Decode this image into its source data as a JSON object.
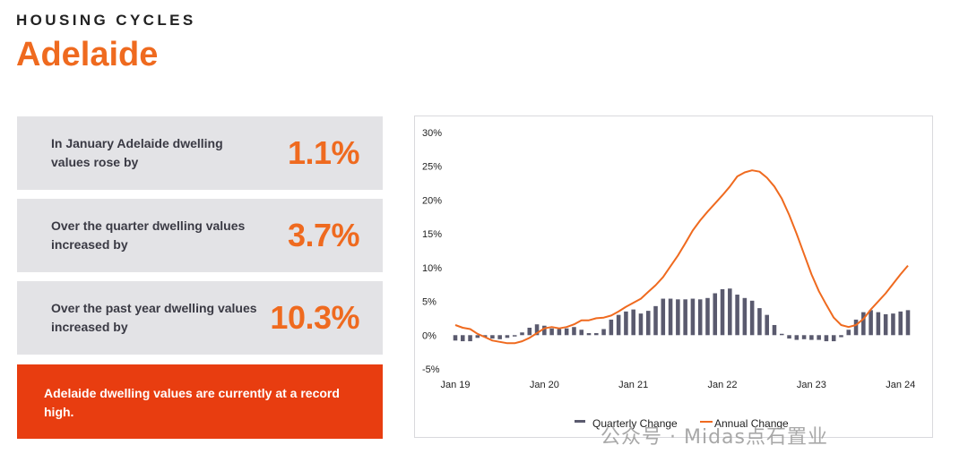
{
  "header": {
    "eyebrow": "HOUSING CYCLES",
    "city": "Adelaide"
  },
  "stats": [
    {
      "desc": "In January Adelaide dwelling values rose by",
      "value": "1.1%"
    },
    {
      "desc": "Over the quarter dwelling values increased by",
      "value": "3.7%"
    },
    {
      "desc": "Over the past year dwelling values increased by",
      "value": "10.3%"
    }
  ],
  "banner": {
    "text": "Adelaide dwelling values are currently at a record high."
  },
  "watermark": "公众号 · Midas点石置业",
  "colors": {
    "accent": "#ef6a1f",
    "banner": "#e83d10",
    "bars": "#5a5a6e",
    "line": "#ef6a1f"
  },
  "chart_data": {
    "type": "bar+line",
    "y_ticks": [
      "30%",
      "25%",
      "20%",
      "15%",
      "10%",
      "5%",
      "0%",
      "-5%"
    ],
    "ylim": [
      -5,
      30
    ],
    "x_labels": [
      "Jan 19",
      "Jan 20",
      "Jan 21",
      "Jan 22",
      "Jan 23",
      "Jan 24"
    ],
    "legend": "bottom",
    "grid": false,
    "series": [
      {
        "name": "Quarterly Change",
        "kind": "bar",
        "values": [
          -0.8,
          -0.9,
          -0.9,
          -0.4,
          -0.3,
          -0.5,
          -0.6,
          -0.4,
          -0.2,
          0.4,
          1.1,
          1.6,
          1.4,
          1.0,
          0.9,
          1.0,
          1.2,
          0.8,
          0.3,
          0.3,
          0.9,
          2.3,
          3.0,
          3.5,
          3.8,
          3.2,
          3.6,
          4.3,
          5.4,
          5.4,
          5.3,
          5.3,
          5.4,
          5.3,
          5.5,
          6.2,
          6.8,
          6.9,
          6.0,
          5.5,
          5.1,
          4.0,
          3.0,
          1.5,
          0.2,
          -0.5,
          -0.7,
          -0.6,
          -0.7,
          -0.7,
          -0.9,
          -0.9,
          -0.3,
          0.8,
          2.3,
          3.4,
          3.7,
          3.4,
          3.1,
          3.2,
          3.5,
          3.7
        ]
      },
      {
        "name": "Annual Change",
        "kind": "line",
        "values": [
          1.5,
          1.1,
          0.9,
          0.2,
          -0.3,
          -0.8,
          -1.0,
          -1.2,
          -1.2,
          -0.9,
          -0.4,
          0.3,
          1.0,
          1.2,
          1.0,
          1.2,
          1.6,
          2.2,
          2.2,
          2.5,
          2.6,
          2.9,
          3.5,
          4.2,
          4.8,
          5.4,
          6.4,
          7.4,
          8.6,
          10.2,
          11.8,
          13.6,
          15.5,
          17.0,
          18.3,
          19.5,
          20.7,
          22.0,
          23.5,
          24.1,
          24.4,
          24.2,
          23.3,
          22.0,
          20.2,
          17.8,
          15.0,
          12.0,
          9.0,
          6.5,
          4.5,
          2.6,
          1.5,
          1.2,
          1.5,
          2.4,
          3.8,
          5.0,
          6.2,
          7.6,
          9.0,
          10.3
        ]
      }
    ]
  }
}
